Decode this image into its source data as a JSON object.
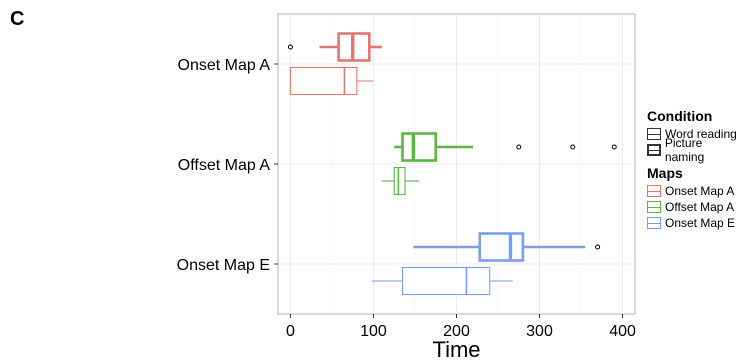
{
  "panel_label": "C",
  "chart_data": {
    "type": "boxplot",
    "xlabel": "Time",
    "ylabel": "",
    "xlim": [
      -15,
      415
    ],
    "x_ticks": [
      0,
      100,
      200,
      300,
      400
    ],
    "categories": [
      "Onset Map A",
      "Offset Map A",
      "Onset Map E"
    ],
    "grid": true,
    "legend_position": "right",
    "legend": {
      "condition_title": "Condition",
      "condition_items": [
        "Word reading",
        "Picture naming"
      ],
      "maps_title": "Maps",
      "maps_items": [
        "Onset Map A",
        "Offset Map A",
        "Onset Map E"
      ]
    },
    "colors": {
      "Onset Map A": "#e07872",
      "Offset Map A": "#59b843",
      "Onset Map E": "#799ef0"
    },
    "boxes": [
      {
        "category": "Onset Map A",
        "condition": "Picture naming",
        "min": 35,
        "q1": 58,
        "median": 75,
        "q3": 95,
        "max": 110,
        "outliers": [
          0
        ]
      },
      {
        "category": "Onset Map A",
        "condition": "Word reading",
        "min": 0,
        "q1": 0,
        "median": 65,
        "q3": 80,
        "max": 100,
        "outliers": []
      },
      {
        "category": "Offset Map A",
        "condition": "Picture naming",
        "min": 125,
        "q1": 135,
        "median": 148,
        "q3": 175,
        "max": 220,
        "outliers": [
          275,
          340,
          390
        ]
      },
      {
        "category": "Offset Map A",
        "condition": "Word reading",
        "min": 110,
        "q1": 125,
        "median": 130,
        "q3": 138,
        "max": 155,
        "outliers": []
      },
      {
        "category": "Onset Map E",
        "condition": "Picture naming",
        "min": 148,
        "q1": 228,
        "median": 265,
        "q3": 280,
        "max": 355,
        "outliers": [
          370
        ]
      },
      {
        "category": "Onset Map E",
        "condition": "Word reading",
        "min": 98,
        "q1": 135,
        "median": 212,
        "q3": 240,
        "max": 268,
        "outliers": []
      }
    ]
  }
}
